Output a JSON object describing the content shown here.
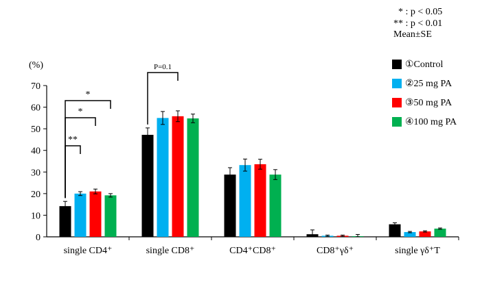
{
  "notes": {
    "sig1": "* : p < 0.05",
    "sig2": "** : p < 0.01",
    "stat": "Mean±SE"
  },
  "chart_data": {
    "type": "bar",
    "y_unit": "(%)",
    "ylim": [
      0,
      70
    ],
    "yticks": [
      "0",
      "10",
      "20",
      "30",
      "40",
      "50",
      "60",
      "70"
    ],
    "grid": false,
    "legend_position": "top-right",
    "categories": [
      "single CD4⁺",
      "single CD8⁺",
      "CD4⁺CD8⁺",
      "CD8⁺γδ⁺",
      "single γδ⁺T"
    ],
    "series": [
      {
        "name": "①Control",
        "color": "#000000",
        "values": [
          14.2,
          47.2,
          28.8,
          1.2,
          5.8
        ],
        "errors": [
          2.2,
          3.2,
          3.2,
          2.0,
          0.7
        ]
      },
      {
        "name": "②25 mg PA",
        "color": "#00b0f0",
        "values": [
          20.0,
          55.0,
          33.2,
          0.5,
          2.2
        ],
        "errors": [
          0.9,
          3.0,
          2.8,
          0.3,
          0.3
        ]
      },
      {
        "name": "③50 mg PA",
        "color": "#ff0000",
        "values": [
          21.0,
          55.8,
          33.6,
          0.5,
          2.5
        ],
        "errors": [
          1.1,
          2.5,
          2.3,
          0.3,
          0.3
        ]
      },
      {
        "name": "④100 mg PA",
        "color": "#00b050",
        "values": [
          19.2,
          54.8,
          28.8,
          0.3,
          3.8
        ],
        "errors": [
          0.8,
          2.0,
          2.3,
          0.8,
          0.3
        ]
      }
    ],
    "annotations": [
      {
        "category": 0,
        "from": 0,
        "to": 1,
        "label": "**"
      },
      {
        "category": 0,
        "from": 0,
        "to": 2,
        "label": "*"
      },
      {
        "category": 0,
        "from": 0,
        "to": 3,
        "label": "*"
      },
      {
        "category": 1,
        "from": 0,
        "to": 2,
        "label": "P=0.1"
      }
    ]
  }
}
